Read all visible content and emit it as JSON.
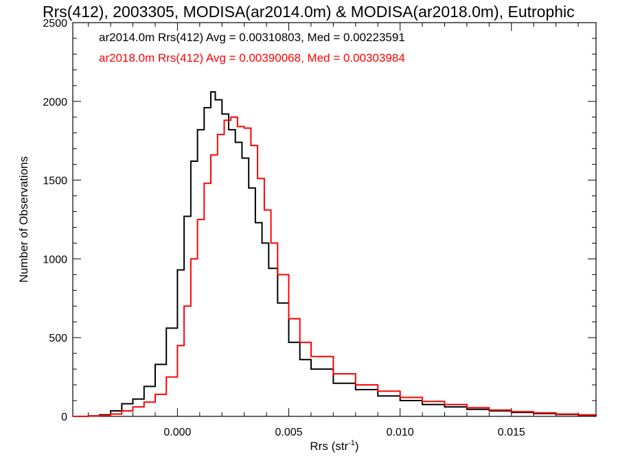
{
  "chart_data": {
    "type": "line",
    "title": "Rrs(412), 2003305, MODISA(ar2014.0m) & MODISA(ar2018.0m), Eutrophic",
    "xlabel": "Rrs (str",
    "xlabel_sup": "-1",
    "xlabel_close": ")",
    "ylabel": "Number of Observations",
    "xlim": [
      -0.0047,
      0.0188
    ],
    "ylim": [
      0,
      2500
    ],
    "xticks": [
      0.0,
      0.005,
      0.01,
      0.015
    ],
    "xtick_labels": [
      "0.000",
      "0.005",
      "0.010",
      "0.015"
    ],
    "yticks": [
      0,
      500,
      1000,
      1500,
      2000,
      2500
    ],
    "ytick_labels": [
      "0",
      "500",
      "1000",
      "1500",
      "2000",
      "2500"
    ],
    "grid": false,
    "legend_position": "top-left",
    "legend": [
      {
        "text": "ar2014.0m Rrs(412) Avg = 0.00310803, Med = 0.00223591",
        "color": "#000000"
      },
      {
        "text": "ar2018.0m Rrs(412) Avg = 0.00390068, Med = 0.00303984",
        "color": "#ff0000"
      }
    ],
    "series": [
      {
        "color": "#000000",
        "x": [
          -0.0047,
          -0.004,
          -0.0035,
          -0.003,
          -0.0025,
          -0.002,
          -0.0015,
          -0.001,
          -0.0005,
          0.0,
          0.0003,
          0.0006,
          0.0009,
          0.0012,
          0.0015,
          0.0017,
          0.002,
          0.0023,
          0.0026,
          0.0029,
          0.0032,
          0.0035,
          0.0038,
          0.0041,
          0.0045,
          0.005,
          0.0055,
          0.006,
          0.007,
          0.008,
          0.009,
          0.01,
          0.011,
          0.012,
          0.013,
          0.014,
          0.015,
          0.016,
          0.017,
          0.018,
          0.0188
        ],
        "y": [
          0,
          3,
          10,
          35,
          80,
          110,
          190,
          330,
          560,
          930,
          1270,
          1620,
          1820,
          1960,
          2060,
          2010,
          1920,
          1820,
          1740,
          1640,
          1450,
          1230,
          1100,
          940,
          720,
          470,
          360,
          300,
          210,
          170,
          130,
          100,
          75,
          60,
          45,
          35,
          25,
          18,
          12,
          8,
          5
        ]
      },
      {
        "color": "#ff0000",
        "x": [
          -0.0047,
          -0.004,
          -0.0035,
          -0.003,
          -0.0025,
          -0.002,
          -0.0015,
          -0.001,
          -0.0005,
          0.0,
          0.0003,
          0.0006,
          0.0009,
          0.0012,
          0.0015,
          0.0018,
          0.0021,
          0.0024,
          0.0027,
          0.003,
          0.0033,
          0.0036,
          0.0039,
          0.0042,
          0.0045,
          0.005,
          0.0055,
          0.006,
          0.007,
          0.008,
          0.009,
          0.01,
          0.011,
          0.012,
          0.013,
          0.014,
          0.015,
          0.016,
          0.017,
          0.018,
          0.0188
        ],
        "y": [
          0,
          2,
          5,
          15,
          35,
          60,
          90,
          140,
          250,
          450,
          700,
          1000,
          1250,
          1480,
          1660,
          1790,
          1880,
          1900,
          1840,
          1830,
          1720,
          1510,
          1310,
          1100,
          900,
          620,
          470,
          380,
          270,
          200,
          160,
          120,
          95,
          75,
          55,
          40,
          30,
          22,
          15,
          10,
          6
        ]
      }
    ]
  }
}
